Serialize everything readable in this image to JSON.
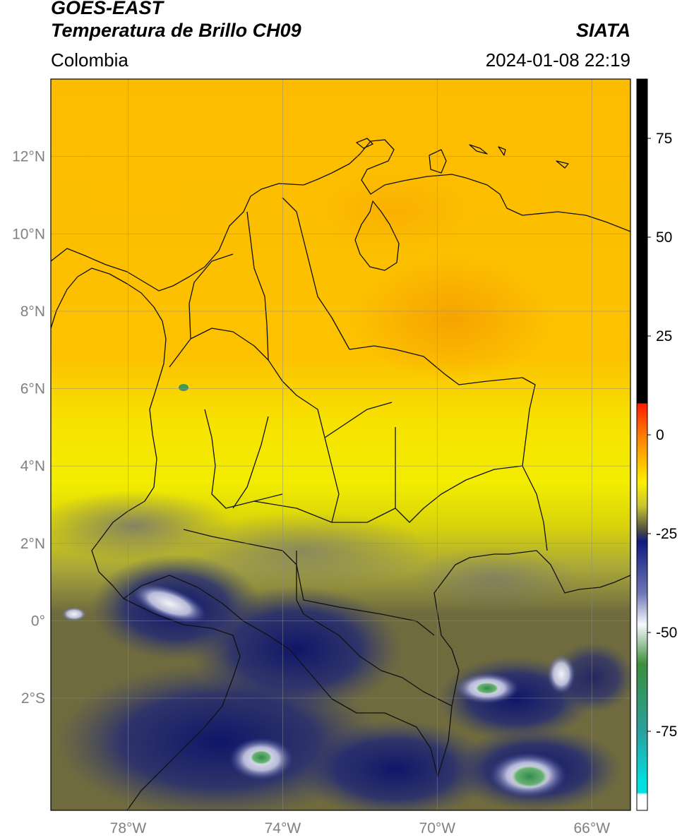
{
  "header": {
    "satellite": "GOES-EAST",
    "product": "Temperatura de Brillo CH09",
    "organization": "SIATA",
    "region": "Colombia",
    "datetime": "2024-01-08 22:19"
  },
  "map": {
    "projection": "plate-carree",
    "lon_range": [
      -80,
      -65
    ],
    "lat_range": [
      -4.9,
      14
    ],
    "gridlines": true,
    "lat_ticks": [
      {
        "value": 12,
        "label": "12°N"
      },
      {
        "value": 10,
        "label": "10°N"
      },
      {
        "value": 8,
        "label": "8°N"
      },
      {
        "value": 6,
        "label": "6°N"
      },
      {
        "value": 4,
        "label": "4°N"
      },
      {
        "value": 2,
        "label": "2°N"
      },
      {
        "value": 0,
        "label": "0°"
      },
      {
        "value": -2,
        "label": "2°S"
      }
    ],
    "lon_ticks": [
      {
        "value": -78,
        "label": "78°W"
      },
      {
        "value": -74,
        "label": "74°W"
      },
      {
        "value": -70,
        "label": "70°W"
      },
      {
        "value": -66,
        "label": "66°W"
      }
    ],
    "field_colors": {
      "warm_orange": "#f5a300",
      "orange": "#fdbb00",
      "yellow": "#f3ed00",
      "olive": "#a8a63a",
      "dark_olive": "#6f6b3f",
      "gray": "#707070",
      "navy": "#1a2277",
      "deep_navy": "#0a116a",
      "white": "#f0f0f4",
      "green": "#3d9b55"
    }
  },
  "colorbar": {
    "range": [
      -95,
      90
    ],
    "ticks": [
      {
        "value": 75,
        "label": "75"
      },
      {
        "value": 50,
        "label": "50"
      },
      {
        "value": 25,
        "label": "25"
      },
      {
        "value": 0,
        "label": "0"
      },
      {
        "value": -25,
        "label": "-25"
      },
      {
        "value": -50,
        "label": "-50"
      },
      {
        "value": -75,
        "label": "-75"
      }
    ],
    "stops": [
      {
        "value": 90,
        "color": "#000000"
      },
      {
        "value": 8,
        "color": "#000000"
      },
      {
        "value": 7.9,
        "color": "#ff1a00"
      },
      {
        "value": 0,
        "color": "#ff7a00"
      },
      {
        "value": -12,
        "color": "#ffef00"
      },
      {
        "value": -18,
        "color": "#c8c430"
      },
      {
        "value": -24,
        "color": "#505040"
      },
      {
        "value": -27,
        "color": "#101a80"
      },
      {
        "value": -40,
        "color": "#6d76b5"
      },
      {
        "value": -48,
        "color": "#f8f8ff"
      },
      {
        "value": -58,
        "color": "#3b8f3b"
      },
      {
        "value": -75,
        "color": "#2aa0a0"
      },
      {
        "value": -88,
        "color": "#00e0e0"
      },
      {
        "value": -90.5,
        "color": "#00e0e0"
      },
      {
        "value": -91,
        "color": "#ffffff"
      },
      {
        "value": -95,
        "color": "#ffffff"
      }
    ]
  }
}
